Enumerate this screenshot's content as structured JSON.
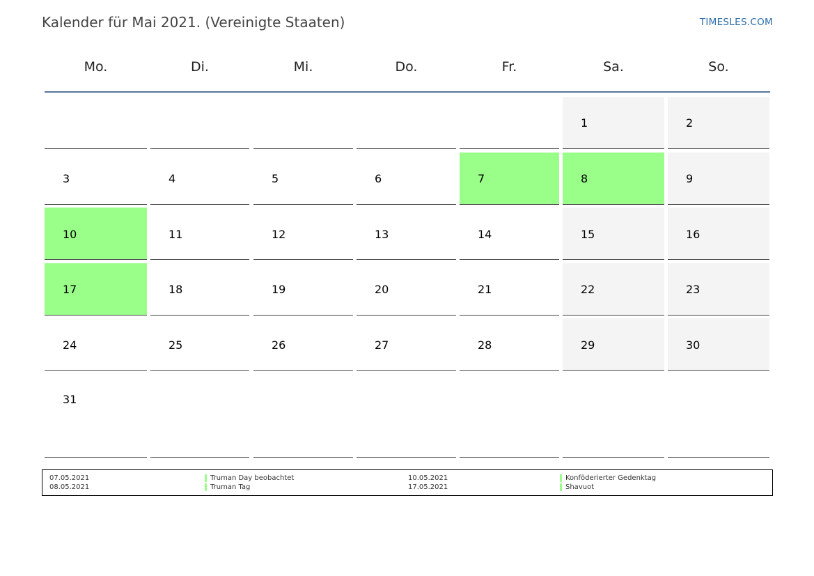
{
  "header": {
    "title": "Kalender für Mai 2021. (Vereinigte Staaten)",
    "site": "TIMESLES.COM"
  },
  "weekdays": [
    "Mo.",
    "Di.",
    "Mi.",
    "Do.",
    "Fr.",
    "Sa.",
    "So."
  ],
  "weeks": [
    [
      "",
      "",
      "",
      "",
      "",
      "1",
      "2"
    ],
    [
      "3",
      "4",
      "5",
      "6",
      "7",
      "8",
      "9"
    ],
    [
      "10",
      "11",
      "12",
      "13",
      "14",
      "15",
      "16"
    ],
    [
      "17",
      "18",
      "19",
      "20",
      "21",
      "22",
      "23"
    ],
    [
      "24",
      "25",
      "26",
      "27",
      "28",
      "29",
      "30"
    ],
    [
      "31",
      "",
      "",
      "",
      "",
      "",
      ""
    ]
  ],
  "holiday_days": [
    "7",
    "8",
    "10",
    "17"
  ],
  "colors": {
    "holiday": "#99ff88",
    "weekend": "#f4f4f4",
    "header_line": "#5a7697",
    "site_link": "#2b6ca8"
  },
  "holidays": [
    {
      "date": "07.05.2021",
      "name": "Truman Day beobachtet"
    },
    {
      "date": "08.05.2021",
      "name": "Truman Tag"
    },
    {
      "date": "10.05.2021",
      "name": "Konföderierter Gedenktag"
    },
    {
      "date": "17.05.2021",
      "name": "Shavuot"
    }
  ]
}
